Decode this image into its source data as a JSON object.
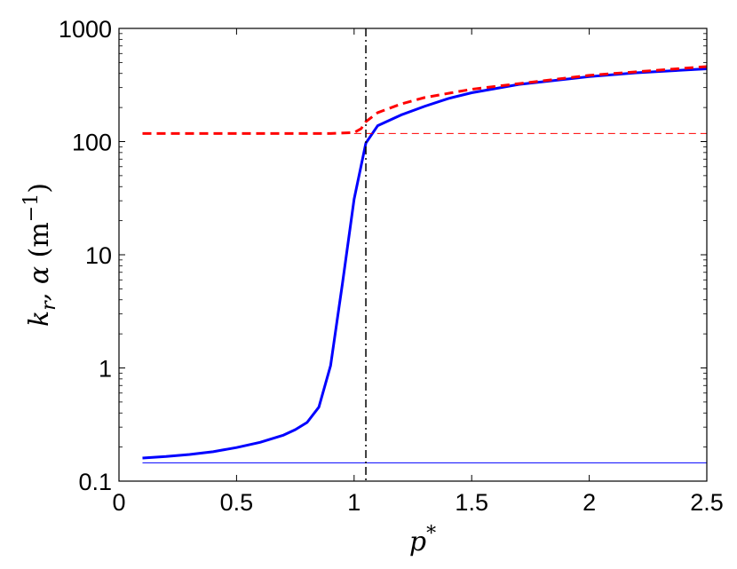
{
  "chart_data": {
    "type": "line",
    "title": "",
    "xlabel": "p*",
    "ylabel": "k_r, α (m^−1)",
    "ylabel_parts": {
      "k": "k",
      "r": "r",
      "alpha": ", α ",
      "unit": "(m",
      "exp": "−1",
      "close": ")"
    },
    "xlabel_parts": {
      "p": "p",
      "star": "*"
    },
    "xlim": [
      0,
      2.5
    ],
    "ylim": [
      0.1,
      1000
    ],
    "yscale": "log",
    "grid": false,
    "legend": "none",
    "x_ticks": [
      0,
      0.5,
      1,
      1.5,
      2,
      2.5
    ],
    "x_tick_labels": [
      "0",
      "0.5",
      "1",
      "1.5",
      "2",
      "2.5"
    ],
    "y_ticks": [
      0.1,
      1,
      10,
      100,
      1000
    ],
    "y_tick_labels": [
      "0.1",
      "1",
      "10",
      "100",
      "1000"
    ],
    "series": [
      {
        "color": "#0000ff",
        "style": "solid",
        "width": 3,
        "x": [
          0.1,
          0.2,
          0.3,
          0.4,
          0.5,
          0.6,
          0.7,
          0.75,
          0.8,
          0.85,
          0.9,
          0.95,
          1.0,
          1.05,
          1.1,
          1.2,
          1.3,
          1.4,
          1.5,
          1.7,
          2.0,
          2.2,
          2.5
        ],
        "y": [
          0.16,
          0.165,
          0.172,
          0.182,
          0.198,
          0.22,
          0.255,
          0.285,
          0.33,
          0.45,
          1.05,
          5.5,
          31,
          97,
          138,
          172,
          205,
          240,
          270,
          320,
          375,
          405,
          440
        ]
      },
      {
        "color": "#ff0000",
        "style": "dashed",
        "width": 3,
        "x": [
          0.1,
          0.5,
          0.9,
          1.0,
          1.03,
          1.05,
          1.1,
          1.2,
          1.3,
          1.5,
          2.0,
          2.5
        ],
        "y": [
          118,
          118,
          118,
          120,
          130,
          150,
          180,
          215,
          245,
          290,
          385,
          460
        ]
      },
      {
        "color": "#ff0000",
        "style": "dashed",
        "width": 1,
        "x": [
          1.0,
          2.5
        ],
        "y": [
          118,
          118
        ]
      },
      {
        "color": "#0000ff",
        "style": "solid",
        "width": 1,
        "x": [
          0.1,
          2.5
        ],
        "y": [
          0.145,
          0.145
        ]
      }
    ],
    "vlines": [
      {
        "x": 1.05,
        "color": "#000000",
        "style": "dashdot"
      }
    ]
  }
}
